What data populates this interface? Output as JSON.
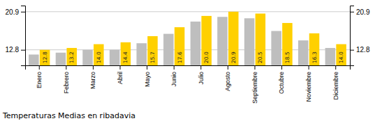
{
  "chart_data": {
    "type": "bar",
    "title": "Temperaturas Medias en ribadavia",
    "categories": [
      "Enero",
      "Febrero",
      "Marzo",
      "Abril",
      "Mayo",
      "Junio",
      "Julio",
      "Agosto",
      "Septiembre",
      "Octubre",
      "Noviembre",
      "Diciembre"
    ],
    "series": [
      {
        "color": "#BEBEBE",
        "values": [
          11.8,
          12.2,
          12.8,
          12.8,
          14.2,
          16.2,
          18.8,
          19.8,
          19.5,
          16.8,
          14.8,
          13.2
        ]
      },
      {
        "color": "#FFD000",
        "values": [
          12.8,
          13.2,
          14.0,
          14.4,
          15.7,
          17.6,
          20.0,
          20.9,
          20.5,
          18.5,
          16.3,
          14.0
        ],
        "value_labels": [
          "12.8",
          "13.2",
          "14.0",
          "14.4",
          "15.7",
          "17.6",
          "20.0",
          "20.9",
          "20.5",
          "18.5",
          "16.3",
          "14.0"
        ],
        "data_labels": true
      }
    ],
    "ylim": [
      9.5,
      22.2
    ],
    "yticks": [
      20.9,
      12.8
    ],
    "y2lim": [
      9.5,
      22.2
    ],
    "y2ticks": [
      20.9,
      12.8
    ],
    "grid": true
  }
}
